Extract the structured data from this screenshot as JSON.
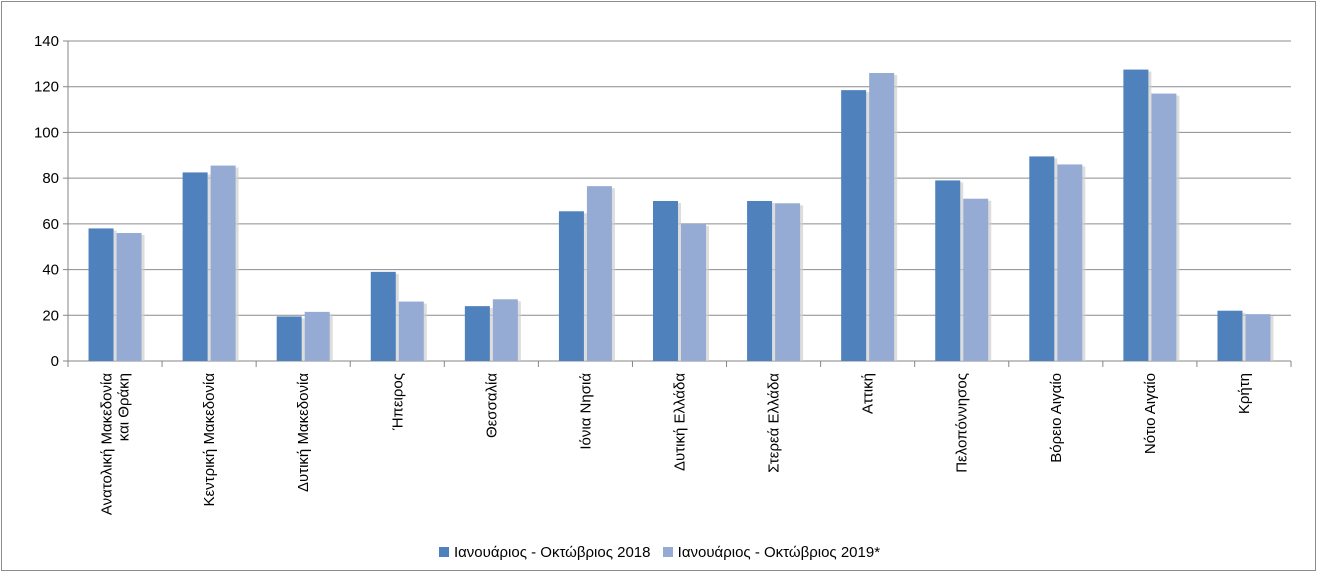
{
  "chart_data": {
    "type": "bar",
    "categories": [
      [
        "Ανατολική Μακεδονία",
        "και Θράκη"
      ],
      [
        "Κεντρική Μακεδονία"
      ],
      [
        "Δυτική Μακεδονία"
      ],
      [
        "Ήπειρος"
      ],
      [
        "Θεσσαλία"
      ],
      [
        "Ιόνια Νησιά"
      ],
      [
        "Δυτική Ελλάδα"
      ],
      [
        "Στερεά Ελλάδα"
      ],
      [
        "Αττική"
      ],
      [
        "Πελοπόννησος"
      ],
      [
        "Βόρειο Αιγαίο"
      ],
      [
        "Νότιο Αιγαίο"
      ],
      [
        "Κρήτη"
      ]
    ],
    "series": [
      {
        "name": "Ιανουάριος - Οκτώβριος 2018",
        "color": "#4f81bd",
        "values": [
          58,
          82.5,
          19.5,
          39,
          24,
          65.5,
          70,
          70,
          118.5,
          79,
          89.5,
          127.5,
          22
        ]
      },
      {
        "name": "Ιανουάριος - Οκτώβριος 2019*",
        "color": "#95abd3",
        "values": [
          56,
          85.5,
          21.5,
          26,
          27,
          76.5,
          60,
          69,
          126,
          71,
          86,
          117,
          20.5
        ]
      }
    ],
    "ylim": [
      0,
      140
    ],
    "yticks": [
      0,
      20,
      40,
      60,
      80,
      100,
      120,
      140
    ],
    "grid": true,
    "legend_position": "bottom"
  }
}
